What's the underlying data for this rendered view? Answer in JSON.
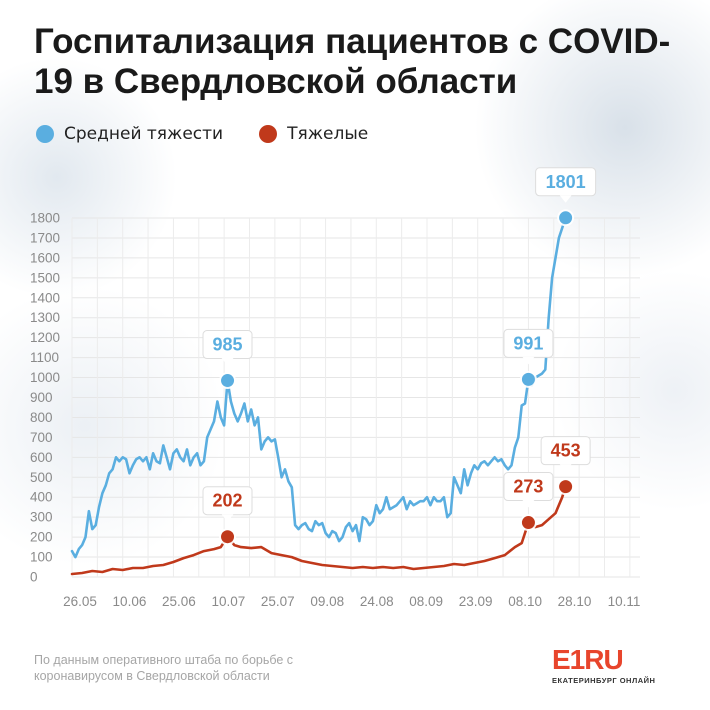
{
  "header": {
    "title": "Госпитализация пациентов с COVID-19 в Свердловской области"
  },
  "legend": [
    {
      "label": "Средней тяжести",
      "color": "#5aaee0"
    },
    {
      "label": "Тяжелые",
      "color": "#c0391b"
    }
  ],
  "footer": {
    "source": "По данным оперативного штаба по борьбе с коронавирусом в Свердловской области",
    "logo_main": "E1",
    "logo_ru": "RU",
    "logo_sub": "ЕКАТЕРИНБУРГ ОНЛАЙН"
  },
  "chart_data": {
    "type": "line",
    "title": "Госпитализация пациентов с COVID-19 в Свердловской области",
    "xlabel": "",
    "ylabel": "",
    "ylim": [
      0,
      1800
    ],
    "yticks": [
      0,
      100,
      200,
      300,
      400,
      500,
      600,
      700,
      800,
      900,
      1000,
      1100,
      1200,
      1300,
      1400,
      1500,
      1600,
      1700,
      1800
    ],
    "xticks": [
      "26.05",
      "10.06",
      "25.06",
      "10.07",
      "25.07",
      "09.08",
      "24.08",
      "08.09",
      "23.09",
      "08.10",
      "28.10",
      "10.11"
    ],
    "xrange_days": [
      0,
      168
    ],
    "grid": true,
    "legend_position": "top-left",
    "series": [
      {
        "name": "Средней тяжести",
        "color": "#5aaee0",
        "points": [
          [
            0,
            130
          ],
          [
            1,
            100
          ],
          [
            2,
            140
          ],
          [
            3,
            160
          ],
          [
            4,
            200
          ],
          [
            5,
            330
          ],
          [
            6,
            240
          ],
          [
            7,
            260
          ],
          [
            8,
            350
          ],
          [
            9,
            420
          ],
          [
            10,
            460
          ],
          [
            11,
            520
          ],
          [
            12,
            540
          ],
          [
            13,
            600
          ],
          [
            14,
            580
          ],
          [
            15,
            600
          ],
          [
            16,
            590
          ],
          [
            17,
            520
          ],
          [
            18,
            560
          ],
          [
            19,
            590
          ],
          [
            20,
            600
          ],
          [
            21,
            580
          ],
          [
            22,
            600
          ],
          [
            23,
            540
          ],
          [
            24,
            620
          ],
          [
            25,
            580
          ],
          [
            26,
            570
          ],
          [
            27,
            660
          ],
          [
            28,
            600
          ],
          [
            29,
            540
          ],
          [
            30,
            620
          ],
          [
            31,
            640
          ],
          [
            32,
            600
          ],
          [
            33,
            580
          ],
          [
            34,
            640
          ],
          [
            35,
            560
          ],
          [
            36,
            600
          ],
          [
            37,
            620
          ],
          [
            38,
            560
          ],
          [
            39,
            580
          ],
          [
            40,
            700
          ],
          [
            41,
            740
          ],
          [
            42,
            780
          ],
          [
            43,
            880
          ],
          [
            44,
            800
          ],
          [
            45,
            760
          ],
          [
            46,
            985
          ],
          [
            47,
            880
          ],
          [
            48,
            820
          ],
          [
            49,
            780
          ],
          [
            50,
            820
          ],
          [
            51,
            870
          ],
          [
            52,
            780
          ],
          [
            53,
            840
          ],
          [
            54,
            760
          ],
          [
            55,
            800
          ],
          [
            56,
            640
          ],
          [
            57,
            680
          ],
          [
            58,
            700
          ],
          [
            59,
            680
          ],
          [
            60,
            690
          ],
          [
            61,
            600
          ],
          [
            62,
            500
          ],
          [
            63,
            540
          ],
          [
            64,
            480
          ],
          [
            65,
            450
          ],
          [
            66,
            260
          ],
          [
            67,
            240
          ],
          [
            68,
            260
          ],
          [
            69,
            270
          ],
          [
            70,
            240
          ],
          [
            71,
            230
          ],
          [
            72,
            280
          ],
          [
            73,
            260
          ],
          [
            74,
            270
          ],
          [
            75,
            220
          ],
          [
            76,
            200
          ],
          [
            77,
            230
          ],
          [
            78,
            220
          ],
          [
            79,
            180
          ],
          [
            80,
            200
          ],
          [
            81,
            250
          ],
          [
            82,
            270
          ],
          [
            83,
            230
          ],
          [
            84,
            260
          ],
          [
            85,
            180
          ],
          [
            86,
            300
          ],
          [
            87,
            290
          ],
          [
            88,
            260
          ],
          [
            89,
            280
          ],
          [
            90,
            360
          ],
          [
            91,
            320
          ],
          [
            92,
            340
          ],
          [
            93,
            400
          ],
          [
            94,
            340
          ],
          [
            95,
            350
          ],
          [
            96,
            360
          ],
          [
            97,
            380
          ],
          [
            98,
            400
          ],
          [
            99,
            340
          ],
          [
            100,
            380
          ],
          [
            101,
            360
          ],
          [
            102,
            370
          ],
          [
            103,
            380
          ],
          [
            104,
            380
          ],
          [
            105,
            400
          ],
          [
            106,
            360
          ],
          [
            107,
            400
          ],
          [
            108,
            380
          ],
          [
            109,
            380
          ],
          [
            110,
            400
          ],
          [
            111,
            300
          ],
          [
            112,
            320
          ],
          [
            113,
            500
          ],
          [
            114,
            460
          ],
          [
            115,
            420
          ],
          [
            116,
            540
          ],
          [
            117,
            460
          ],
          [
            118,
            520
          ],
          [
            119,
            560
          ],
          [
            120,
            540
          ],
          [
            121,
            570
          ],
          [
            122,
            580
          ],
          [
            123,
            560
          ],
          [
            124,
            580
          ],
          [
            125,
            600
          ],
          [
            126,
            580
          ],
          [
            127,
            590
          ],
          [
            128,
            560
          ],
          [
            129,
            540
          ],
          [
            130,
            560
          ],
          [
            131,
            650
          ],
          [
            132,
            700
          ],
          [
            133,
            860
          ],
          [
            134,
            870
          ],
          [
            135,
            991
          ],
          [
            136,
            960
          ],
          [
            137,
            1000
          ],
          [
            138,
            1010
          ],
          [
            139,
            1020
          ],
          [
            140,
            1040
          ],
          [
            141,
            1300
          ],
          [
            142,
            1500
          ],
          [
            143,
            1600
          ],
          [
            144,
            1700
          ],
          [
            145,
            1750
          ],
          [
            146,
            1801
          ]
        ],
        "labels": [
          {
            "x": 46,
            "y": 985,
            "text": "985"
          },
          {
            "x": 135,
            "y": 991,
            "text": "991"
          },
          {
            "x": 146,
            "y": 1801,
            "text": "1801"
          }
        ]
      },
      {
        "name": "Тяжелые",
        "color": "#c0391b",
        "points": [
          [
            0,
            15
          ],
          [
            3,
            20
          ],
          [
            6,
            30
          ],
          [
            9,
            25
          ],
          [
            12,
            40
          ],
          [
            15,
            35
          ],
          [
            18,
            45
          ],
          [
            21,
            45
          ],
          [
            24,
            55
          ],
          [
            27,
            60
          ],
          [
            30,
            75
          ],
          [
            33,
            95
          ],
          [
            36,
            110
          ],
          [
            39,
            130
          ],
          [
            42,
            140
          ],
          [
            44,
            150
          ],
          [
            46,
            202
          ],
          [
            48,
            160
          ],
          [
            50,
            150
          ],
          [
            53,
            145
          ],
          [
            56,
            150
          ],
          [
            59,
            120
          ],
          [
            62,
            110
          ],
          [
            65,
            100
          ],
          [
            68,
            80
          ],
          [
            71,
            70
          ],
          [
            74,
            60
          ],
          [
            77,
            55
          ],
          [
            80,
            50
          ],
          [
            83,
            45
          ],
          [
            86,
            50
          ],
          [
            89,
            45
          ],
          [
            92,
            50
          ],
          [
            95,
            45
          ],
          [
            98,
            50
          ],
          [
            101,
            40
          ],
          [
            104,
            45
          ],
          [
            107,
            50
          ],
          [
            110,
            55
          ],
          [
            113,
            65
          ],
          [
            116,
            60
          ],
          [
            119,
            70
          ],
          [
            122,
            80
          ],
          [
            125,
            95
          ],
          [
            128,
            110
          ],
          [
            131,
            150
          ],
          [
            133,
            170
          ],
          [
            135,
            273
          ],
          [
            137,
            250
          ],
          [
            139,
            260
          ],
          [
            141,
            290
          ],
          [
            143,
            320
          ],
          [
            145,
            400
          ],
          [
            146,
            453
          ]
        ],
        "labels": [
          {
            "x": 46,
            "y": 202,
            "text": "202"
          },
          {
            "x": 135,
            "y": 273,
            "text": "273"
          },
          {
            "x": 146,
            "y": 453,
            "text": "453"
          }
        ]
      }
    ]
  }
}
